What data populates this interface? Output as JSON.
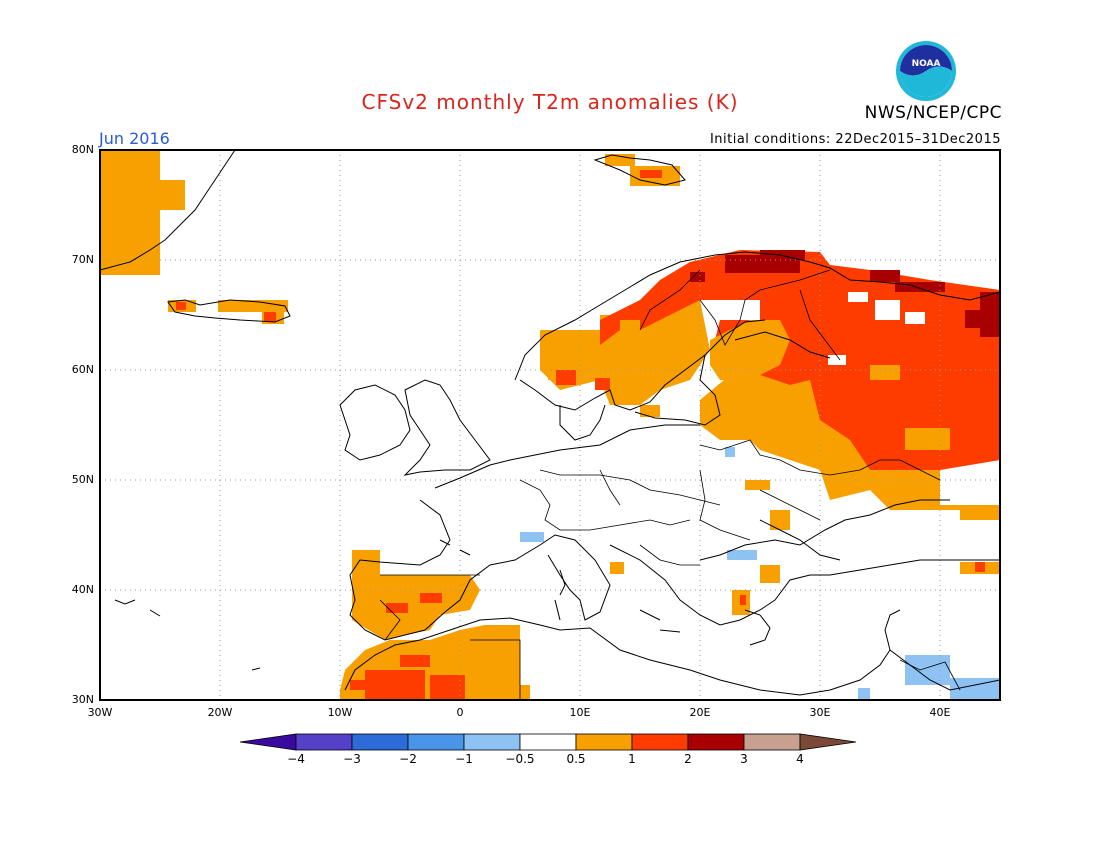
{
  "title": "CFSv2 monthly T2m anomalies (K)",
  "agency": "NWS/NCEP/CPC",
  "logo_text": "NOAA",
  "valid_month": "Jun 2016",
  "initial_conditions": "Initial conditions: 22Dec2015–31Dec2015",
  "lat_labels": [
    "80N",
    "70N",
    "60N",
    "50N",
    "40N",
    "30N"
  ],
  "lon_labels": [
    "30W",
    "20W",
    "10W",
    "0",
    "10E",
    "20E",
    "30E",
    "40E"
  ],
  "colorbar": {
    "labels": [
      "−4",
      "−3",
      "−2",
      "−1",
      "−0.5",
      "0.5",
      "1",
      "2",
      "3",
      "4"
    ],
    "colors": [
      "#3a0aa0",
      "#5540c8",
      "#2d6bd8",
      "#4a94ea",
      "#8dc2f2",
      "#ffffff",
      "#f7a000",
      "#ff3c00",
      "#a80000",
      "#c8a090",
      "#7a4a36"
    ]
  },
  "anomaly_colors": {
    "warm_0_5_1": "#f7a000",
    "warm_1_2": "#ff3c00",
    "warm_2_3": "#a80000",
    "cool_0_5_1": "#8dc2f2"
  }
}
